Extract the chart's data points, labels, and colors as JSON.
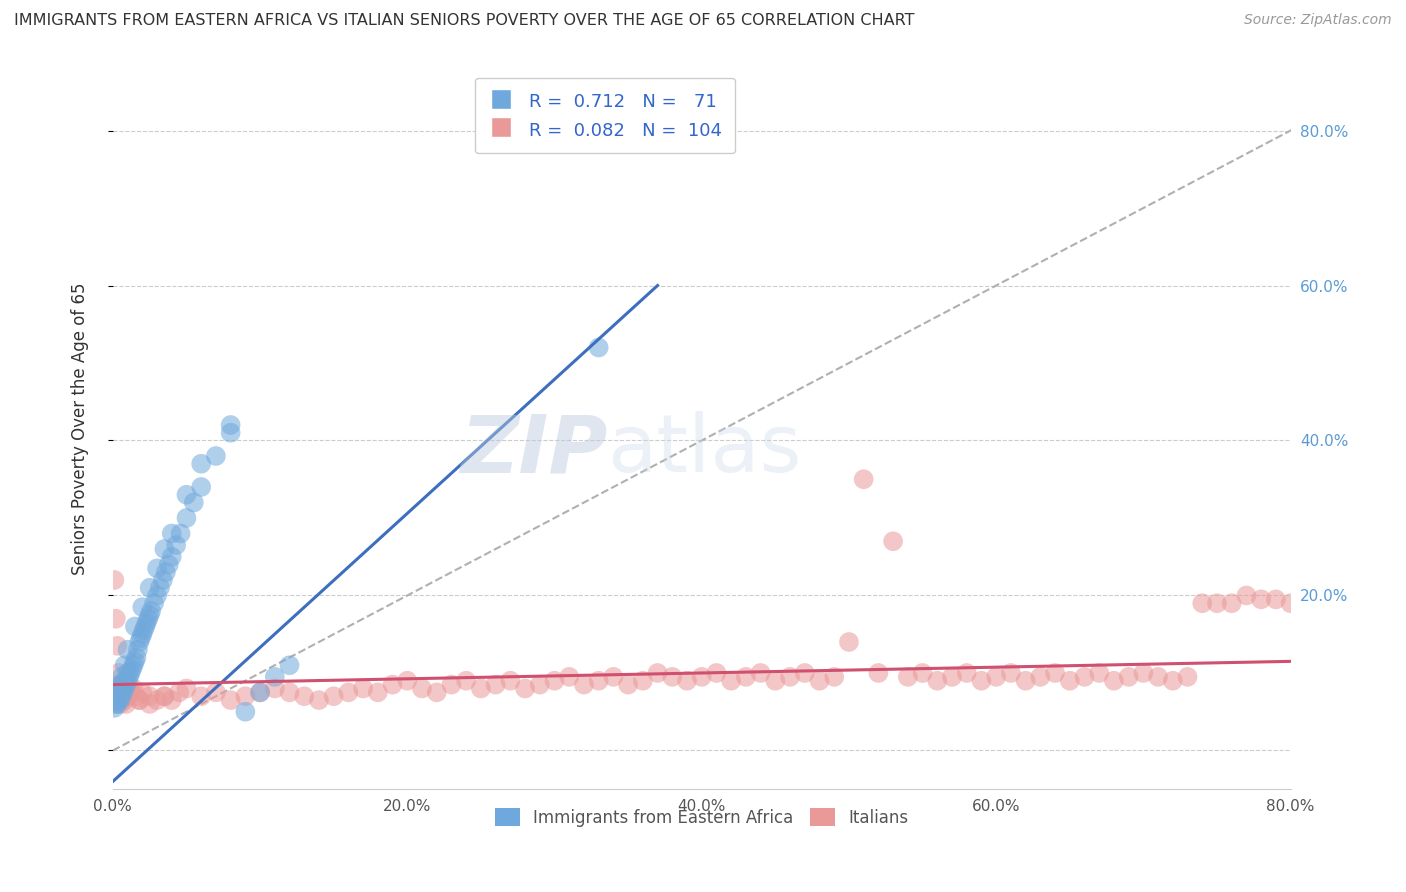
{
  "title": "IMMIGRANTS FROM EASTERN AFRICA VS ITALIAN SENIORS POVERTY OVER THE AGE OF 65 CORRELATION CHART",
  "source": "Source: ZipAtlas.com",
  "ylabel": "Seniors Poverty Over the Age of 65",
  "xlim": [
    0.0,
    0.8
  ],
  "ylim": [
    -0.05,
    0.88
  ],
  "x_ticks": [
    0.0,
    0.2,
    0.4,
    0.6,
    0.8
  ],
  "x_tick_labels": [
    "0.0%",
    "20.0%",
    "40.0%",
    "60.0%",
    "80.0%"
  ],
  "y_ticks": [
    0.0,
    0.2,
    0.4,
    0.6,
    0.8
  ],
  "y_right_labels": [
    "",
    "20.0%",
    "40.0%",
    "60.0%",
    "80.0%"
  ],
  "blue_R": 0.712,
  "blue_N": 71,
  "pink_R": 0.082,
  "pink_N": 104,
  "blue_color": "#6fa8dc",
  "pink_color": "#ea9999",
  "blue_line_color": "#3d6fbe",
  "pink_line_color": "#d05070",
  "ref_line_color": "#b0b0b0",
  "legend_label_blue": "Immigrants from Eastern Africa",
  "legend_label_pink": "Italians",
  "watermark_zip": "ZIP",
  "watermark_atlas": "atlas",
  "blue_line_x": [
    0.0,
    0.37
  ],
  "blue_line_y": [
    -0.04,
    0.6
  ],
  "pink_line_x": [
    0.0,
    0.8
  ],
  "pink_line_y": [
    0.085,
    0.115
  ],
  "ref_line_x": [
    0.0,
    0.88
  ],
  "ref_line_y": [
    0.0,
    0.88
  ],
  "blue_scatter_x": [
    0.001,
    0.001,
    0.002,
    0.002,
    0.002,
    0.003,
    0.003,
    0.003,
    0.004,
    0.004,
    0.005,
    0.005,
    0.005,
    0.006,
    0.006,
    0.007,
    0.007,
    0.008,
    0.008,
    0.009,
    0.01,
    0.01,
    0.011,
    0.012,
    0.013,
    0.014,
    0.015,
    0.016,
    0.017,
    0.018,
    0.019,
    0.02,
    0.021,
    0.022,
    0.023,
    0.024,
    0.025,
    0.026,
    0.028,
    0.03,
    0.032,
    0.034,
    0.036,
    0.038,
    0.04,
    0.043,
    0.046,
    0.05,
    0.055,
    0.06,
    0.07,
    0.08,
    0.09,
    0.1,
    0.11,
    0.12,
    0.003,
    0.004,
    0.006,
    0.008,
    0.01,
    0.015,
    0.02,
    0.025,
    0.03,
    0.035,
    0.04,
    0.05,
    0.06,
    0.08,
    0.33
  ],
  "blue_scatter_y": [
    0.065,
    0.055,
    0.07,
    0.06,
    0.075,
    0.065,
    0.07,
    0.06,
    0.075,
    0.08,
    0.065,
    0.075,
    0.085,
    0.07,
    0.08,
    0.075,
    0.085,
    0.08,
    0.09,
    0.085,
    0.1,
    0.09,
    0.095,
    0.1,
    0.105,
    0.11,
    0.115,
    0.12,
    0.13,
    0.14,
    0.145,
    0.15,
    0.155,
    0.16,
    0.165,
    0.17,
    0.175,
    0.18,
    0.19,
    0.2,
    0.21,
    0.22,
    0.23,
    0.24,
    0.25,
    0.265,
    0.28,
    0.3,
    0.32,
    0.34,
    0.38,
    0.42,
    0.05,
    0.075,
    0.095,
    0.11,
    0.065,
    0.08,
    0.095,
    0.11,
    0.13,
    0.16,
    0.185,
    0.21,
    0.235,
    0.26,
    0.28,
    0.33,
    0.37,
    0.41,
    0.52
  ],
  "pink_scatter_x": [
    0.001,
    0.002,
    0.003,
    0.004,
    0.005,
    0.006,
    0.007,
    0.008,
    0.009,
    0.01,
    0.012,
    0.014,
    0.016,
    0.018,
    0.02,
    0.025,
    0.03,
    0.035,
    0.04,
    0.045,
    0.05,
    0.06,
    0.07,
    0.08,
    0.09,
    0.1,
    0.11,
    0.12,
    0.13,
    0.14,
    0.15,
    0.16,
    0.17,
    0.18,
    0.19,
    0.2,
    0.21,
    0.22,
    0.23,
    0.24,
    0.25,
    0.26,
    0.27,
    0.28,
    0.29,
    0.3,
    0.31,
    0.32,
    0.33,
    0.34,
    0.35,
    0.36,
    0.37,
    0.38,
    0.39,
    0.4,
    0.41,
    0.42,
    0.43,
    0.44,
    0.45,
    0.46,
    0.47,
    0.48,
    0.49,
    0.5,
    0.51,
    0.52,
    0.53,
    0.54,
    0.55,
    0.56,
    0.57,
    0.58,
    0.59,
    0.6,
    0.61,
    0.62,
    0.63,
    0.64,
    0.65,
    0.66,
    0.67,
    0.68,
    0.69,
    0.7,
    0.71,
    0.72,
    0.73,
    0.74,
    0.75,
    0.76,
    0.77,
    0.78,
    0.79,
    0.8,
    0.001,
    0.003,
    0.005,
    0.008,
    0.012,
    0.018,
    0.025,
    0.035
  ],
  "pink_scatter_y": [
    0.22,
    0.17,
    0.135,
    0.1,
    0.085,
    0.075,
    0.07,
    0.065,
    0.06,
    0.07,
    0.075,
    0.08,
    0.07,
    0.065,
    0.075,
    0.07,
    0.065,
    0.07,
    0.065,
    0.075,
    0.08,
    0.07,
    0.075,
    0.065,
    0.07,
    0.075,
    0.08,
    0.075,
    0.07,
    0.065,
    0.07,
    0.075,
    0.08,
    0.075,
    0.085,
    0.09,
    0.08,
    0.075,
    0.085,
    0.09,
    0.08,
    0.085,
    0.09,
    0.08,
    0.085,
    0.09,
    0.095,
    0.085,
    0.09,
    0.095,
    0.085,
    0.09,
    0.1,
    0.095,
    0.09,
    0.095,
    0.1,
    0.09,
    0.095,
    0.1,
    0.09,
    0.095,
    0.1,
    0.09,
    0.095,
    0.14,
    0.35,
    0.1,
    0.27,
    0.095,
    0.1,
    0.09,
    0.095,
    0.1,
    0.09,
    0.095,
    0.1,
    0.09,
    0.095,
    0.1,
    0.09,
    0.095,
    0.1,
    0.09,
    0.095,
    0.1,
    0.095,
    0.09,
    0.095,
    0.19,
    0.19,
    0.19,
    0.2,
    0.195,
    0.195,
    0.19,
    0.075,
    0.08,
    0.06,
    0.07,
    0.075,
    0.065,
    0.06,
    0.07
  ]
}
